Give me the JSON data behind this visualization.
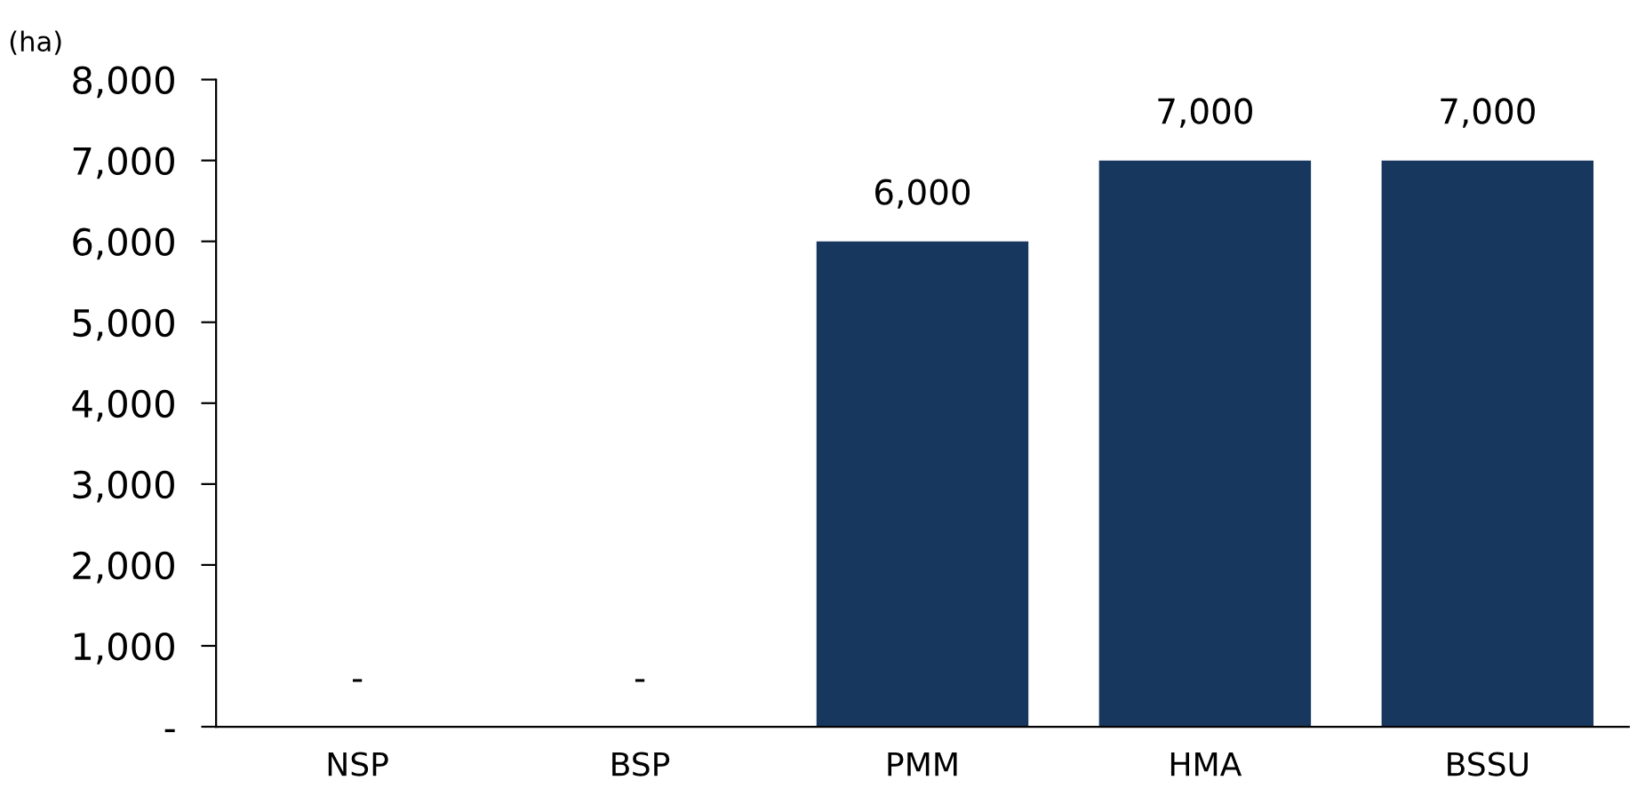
{
  "chart_data": {
    "type": "bar",
    "ylabel": "(ha)",
    "categories": [
      "NSP",
      "BSP",
      "PMM",
      "HMA",
      "BSSU"
    ],
    "values": [
      0,
      0,
      6000,
      7000,
      7000
    ],
    "value_labels": [
      "-",
      "-",
      "6,000",
      "7,000",
      "7,000"
    ],
    "color": "#17375e",
    "ylim": [
      0,
      8000
    ],
    "yticks": [
      {
        "value": 0,
        "label": "-"
      },
      {
        "value": 1000,
        "label": "1,000"
      },
      {
        "value": 2000,
        "label": "2,000"
      },
      {
        "value": 3000,
        "label": "3,000"
      },
      {
        "value": 4000,
        "label": "4,000"
      },
      {
        "value": 5000,
        "label": "5,000"
      },
      {
        "value": 6000,
        "label": "6,000"
      },
      {
        "value": 7000,
        "label": "7,000"
      },
      {
        "value": 8000,
        "label": "8,000"
      }
    ],
    "grid": false
  }
}
